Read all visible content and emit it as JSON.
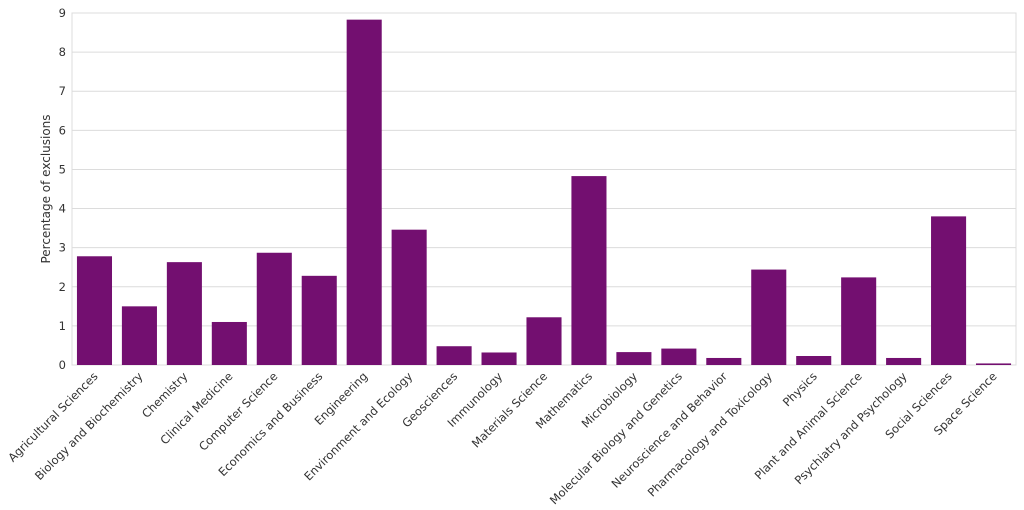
{
  "chart_data": {
    "type": "bar",
    "title": "",
    "xlabel": "",
    "ylabel": "Percentage of exclusions",
    "ylim": [
      0,
      9
    ],
    "yticks": [
      0,
      1,
      2,
      3,
      4,
      5,
      6,
      7,
      8,
      9
    ],
    "grid": "horizontal",
    "bar_color": "#730f70",
    "categories": [
      "Agricultural Sciences",
      "Biology and Biochemistry",
      "Chemistry",
      "Clinical Medicine",
      "Computer Science",
      "Economics and Business",
      "Engineering",
      "Environment and Ecology",
      "Geosciences",
      "Immunology",
      "Materials Science",
      "Mathematics",
      "Microbiology",
      "Molecular Biology and Genetics",
      "Neuroscience and Behavior",
      "Pharmacology and Toxicology",
      "Physics",
      "Plant and Animal Science",
      "Psychiatry and Psychology",
      "Social Sciences",
      "Space Science"
    ],
    "values": [
      2.78,
      1.5,
      2.63,
      1.1,
      2.87,
      2.28,
      8.83,
      3.46,
      0.48,
      0.32,
      1.22,
      4.83,
      0.33,
      0.42,
      0.18,
      2.44,
      0.23,
      2.24,
      0.18,
      3.8,
      0.04
    ]
  }
}
